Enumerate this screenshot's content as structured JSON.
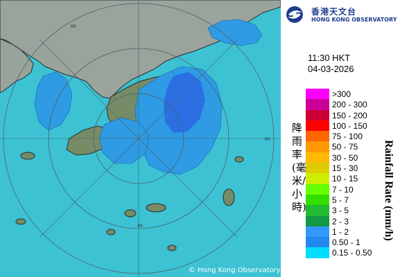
{
  "organization": {
    "name_zh": "香港天文台",
    "name_en": "HONG KONG OBSERVATORY",
    "logo_icon": "observatory-swirl-icon"
  },
  "timestamp": {
    "time": "11:30 HKT",
    "date": "04-03-2026"
  },
  "copyright": "© Hong Kong Observatory",
  "legend": {
    "title_en": "Rainfall Rate (mm/h)",
    "title_zh": "降雨率(毫米/小時)",
    "items": [
      {
        "label": ">300",
        "color": "#ff00ff"
      },
      {
        "label": "200 - 300",
        "color": "#cc0099"
      },
      {
        "label": "150 - 200",
        "color": "#cc0033"
      },
      {
        "label": "100 - 150",
        "color": "#ff0000"
      },
      {
        "label": "75 - 100",
        "color": "#ff6600"
      },
      {
        "label": "50 - 75",
        "color": "#ff9900"
      },
      {
        "label": "30 - 50",
        "color": "#ffbb00"
      },
      {
        "label": "15 - 30",
        "color": "#ddcc00"
      },
      {
        "label": "10 - 15",
        "color": "#ccee00"
      },
      {
        "label": "7 - 10",
        "color": "#66ff00"
      },
      {
        "label": "5 - 7",
        "color": "#33dd00"
      },
      {
        "label": "3 - 5",
        "color": "#22bb33"
      },
      {
        "label": "2 - 3",
        "color": "#119944"
      },
      {
        "label": "1 - 2",
        "color": "#3399ff"
      },
      {
        "label": "0.50 - 1",
        "color": "#2288ee"
      },
      {
        "label": "0.15 - 0.50",
        "color": "#00ddff"
      }
    ]
  },
  "range_rings": {
    "labels": [
      "60",
      "40",
      "60"
    ]
  },
  "colors": {
    "sea": "#3cc2d3",
    "land": "#8d9d8d",
    "china": "#9aa39c",
    "hk_land": "#758c67",
    "rain_light": "#2e9be4",
    "rain_dark": "#2b6fe3"
  }
}
